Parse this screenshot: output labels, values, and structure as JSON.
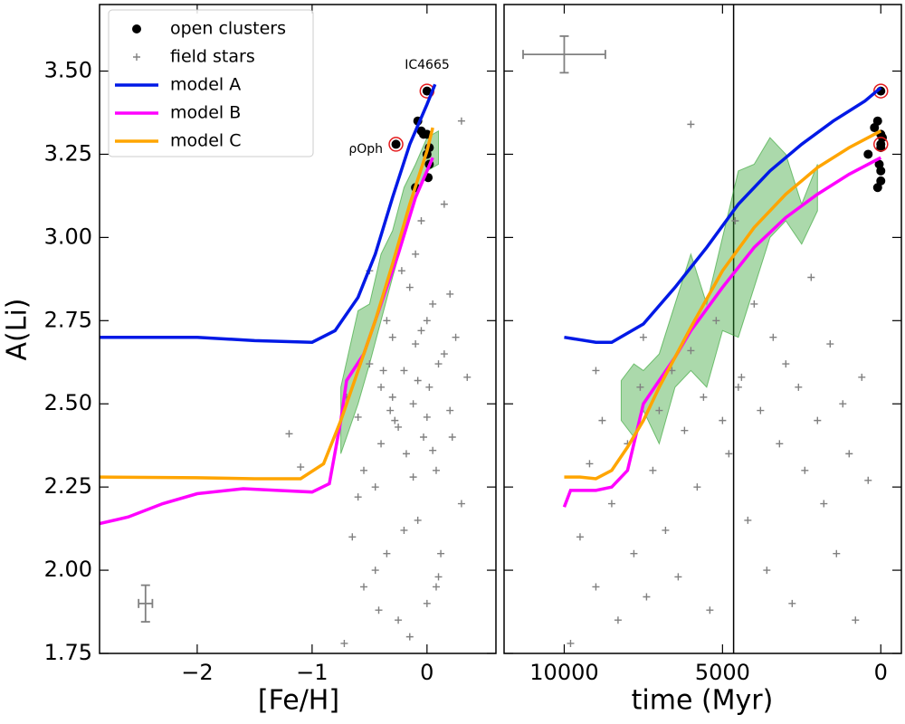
{
  "chart_data": [
    {
      "type": "scatter",
      "xlabel": "[Fe/H]",
      "ylabel": "A(Li)",
      "xlim": [
        -2.85,
        0.6
      ],
      "ylim": [
        1.75,
        3.7
      ],
      "xticks": [
        {
          "value": -2,
          "label": "−2"
        },
        {
          "value": -1,
          "label": "−1"
        },
        0
      ],
      "yticks": [
        1.75,
        {
          "value": 2,
          "label": "2.00"
        },
        2.25,
        {
          "value": 2.5,
          "label": "2.50"
        },
        2.75,
        {
          "value": 3,
          "label": "3.00"
        },
        3.25,
        {
          "value": 3.5,
          "label": "3.50"
        }
      ],
      "legend": "upper left",
      "annotations": [
        "IC4665",
        "ρOph"
      ],
      "series": [
        {
          "kind": "band",
          "color": "#2ca02c",
          "x": [
            -0.75,
            -0.6,
            -0.5,
            -0.4,
            -0.3,
            -0.2,
            -0.1,
            0,
            0.1
          ],
          "lower": [
            2.35,
            2.5,
            2.62,
            2.75,
            2.88,
            3.0,
            3.12,
            3.2,
            3.22
          ],
          "upper": [
            2.55,
            2.78,
            2.8,
            2.95,
            3.02,
            3.15,
            3.22,
            3.3,
            3.32
          ]
        },
        {
          "name": "field stars",
          "kind": "plus",
          "color": "#808080",
          "x": [
            -1.2,
            -1.1,
            -0.72,
            -0.65,
            -0.6,
            -0.55,
            -0.5,
            -0.45,
            -0.4,
            -0.35,
            -0.3,
            -0.28,
            -0.25,
            -0.2,
            -0.18,
            -0.15,
            -0.12,
            -0.1,
            -0.08,
            -0.05,
            -0.03,
            0,
            0.02,
            0.05,
            0.08,
            0.1,
            0.12,
            0.15,
            0.2,
            0.25,
            0.3,
            0.35,
            -0.5,
            -0.4,
            -0.3,
            -0.2,
            -0.1,
            0,
            0.1,
            0.2,
            -0.6,
            -0.45,
            -0.35,
            -0.25,
            -0.15,
            -0.05,
            0.05,
            0.15,
            -0.7,
            -0.55,
            -0.38,
            -0.22,
            -0.08,
            0.08,
            0.22,
            0.3,
            -0.42,
            -0.12,
            0,
            -0.32
          ],
          "values": [
            2.41,
            2.31,
            1.78,
            2.1,
            2.46,
            1.95,
            2.62,
            2.25,
            2.55,
            2.05,
            2.7,
            2.45,
            1.85,
            2.6,
            2.35,
            2.85,
            2.5,
            2.95,
            2.15,
            2.72,
            2.4,
            1.9,
            2.55,
            2.8,
            2.3,
            2.62,
            2.05,
            3.1,
            2.48,
            2.7,
            2.2,
            2.58,
            2.9,
            2.38,
            2.52,
            2.12,
            2.68,
            2.46,
            1.98,
            2.83,
            2.22,
            2.0,
            2.75,
            2.43,
            1.8,
            3.05,
            2.36,
            2.65,
            2.52,
            2.3,
            2.6,
            2.9,
            2.57,
            1.95,
            2.4,
            3.35,
            1.88,
            2.28,
            2.75,
            2.48
          ]
        },
        {
          "name": "open clusters",
          "kind": "dot",
          "color": "#000000",
          "x": [
            0,
            -0.08,
            -0.05,
            0,
            -0.03,
            0.02,
            0,
            0.02,
            0.01,
            -0.1,
            -0.27
          ],
          "values": [
            3.44,
            3.35,
            3.32,
            3.31,
            3.31,
            3.27,
            3.25,
            3.22,
            3.18,
            3.15,
            3.28
          ]
        },
        {
          "kind": "ring",
          "color": "#e41a1c",
          "x": [
            0,
            -0.27
          ],
          "values": [
            3.44,
            3.28
          ]
        },
        {
          "name": "model A",
          "kind": "line",
          "color": "#0019e6",
          "x": [
            -2.85,
            -2.0,
            -1.5,
            -1.0,
            -0.8,
            -0.6,
            -0.45,
            -0.3,
            -0.15,
            0,
            0.07
          ],
          "values": [
            2.7,
            2.7,
            2.69,
            2.685,
            2.72,
            2.82,
            2.95,
            3.12,
            3.28,
            3.4,
            3.46
          ]
        },
        {
          "name": "model B",
          "kind": "line",
          "color": "#ff00ff",
          "x": [
            -2.85,
            -2.6,
            -2.3,
            -2.0,
            -1.6,
            -1.3,
            -1.0,
            -0.85,
            -0.75,
            -0.7,
            -0.55,
            -0.4,
            -0.25,
            -0.1,
            0.05
          ],
          "values": [
            2.14,
            2.16,
            2.2,
            2.23,
            2.245,
            2.24,
            2.235,
            2.26,
            2.45,
            2.57,
            2.65,
            2.8,
            2.95,
            3.12,
            3.24
          ]
        },
        {
          "name": "model C",
          "kind": "line",
          "color": "#ffa500",
          "x": [
            -2.85,
            -2.0,
            -1.5,
            -1.1,
            -0.9,
            -0.75,
            -0.6,
            -0.45,
            -0.3,
            -0.15,
            0,
            0.05
          ],
          "values": [
            2.28,
            2.278,
            2.275,
            2.275,
            2.32,
            2.45,
            2.6,
            2.75,
            2.92,
            3.1,
            3.26,
            3.33
          ]
        },
        {
          "kind": "errorbar",
          "color": "#808080",
          "x": [
            -2.45
          ],
          "values": [
            1.9
          ],
          "xerr": [
            0.06
          ],
          "yerr": [
            0.055
          ]
        }
      ]
    },
    {
      "type": "scatter",
      "xlabel": "time (Myr)",
      "xlim": [
        11900,
        -650
      ],
      "ylim": [
        1.75,
        3.7
      ],
      "xticks": [
        {
          "value": 10000,
          "label": "10000"
        },
        5000,
        0
      ],
      "vline": 4650,
      "series": [
        {
          "kind": "band",
          "color": "#2ca02c",
          "x": [
            8200,
            7800,
            7500,
            7000,
            6500,
            6000,
            5500,
            5000,
            4500,
            4000,
            3500,
            3000,
            2500,
            2000
          ],
          "lower": [
            2.45,
            2.4,
            2.48,
            2.38,
            2.55,
            2.6,
            2.55,
            2.72,
            2.7,
            2.85,
            3.0,
            3.05,
            2.98,
            3.08
          ],
          "upper": [
            2.57,
            2.62,
            2.6,
            2.65,
            2.8,
            2.95,
            2.8,
            3.0,
            3.2,
            3.22,
            3.3,
            3.25,
            3.1,
            3.22
          ]
        },
        {
          "kind": "plus",
          "color": "#808080",
          "x": [
            9800,
            9500,
            9200,
            9000,
            8800,
            8500,
            8300,
            8000,
            7800,
            7600,
            7400,
            7200,
            7000,
            6800,
            6600,
            6400,
            6200,
            6000,
            5800,
            5600,
            5400,
            5200,
            5000,
            4800,
            4600,
            4400,
            4200,
            4000,
            3800,
            3600,
            3400,
            3200,
            3000,
            2800,
            2600,
            2400,
            2200,
            2000,
            1800,
            1600,
            1400,
            1200,
            1000,
            800,
            600,
            400,
            9000,
            7500,
            6000,
            4500
          ],
          "values": [
            1.78,
            2.1,
            2.32,
            1.95,
            2.45,
            2.2,
            1.85,
            2.38,
            2.05,
            2.55,
            1.92,
            2.3,
            2.48,
            2.12,
            2.6,
            1.98,
            2.42,
            2.66,
            2.25,
            2.52,
            1.88,
            2.75,
            2.45,
            2.35,
            3.05,
            2.58,
            2.15,
            2.8,
            2.48,
            2.0,
            2.7,
            2.38,
            2.62,
            1.9,
            2.55,
            2.3,
            2.88,
            2.45,
            2.2,
            2.68,
            2.05,
            2.5,
            2.35,
            1.85,
            2.58,
            2.27,
            2.6,
            2.7,
            3.34,
            2.55
          ]
        },
        {
          "kind": "dot",
          "color": "#000000",
          "x": [
            0,
            200,
            100,
            0,
            -50,
            0,
            50,
            0,
            0,
            100,
            400,
            0
          ],
          "values": [
            3.44,
            3.33,
            3.35,
            3.31,
            3.3,
            3.27,
            3.22,
            3.2,
            3.17,
            3.15,
            3.25,
            3.28
          ]
        },
        {
          "kind": "ring",
          "color": "#e41a1c",
          "x": [
            0,
            0
          ],
          "values": [
            3.44,
            3.28
          ]
        },
        {
          "kind": "line",
          "color": "#0019e6",
          "x": [
            10000,
            9000,
            8500,
            7500,
            6500,
            5500,
            4500,
            3500,
            2500,
            1500,
            500,
            0
          ],
          "values": [
            2.7,
            2.685,
            2.685,
            2.74,
            2.85,
            2.97,
            3.1,
            3.2,
            3.28,
            3.35,
            3.41,
            3.45
          ]
        },
        {
          "kind": "line",
          "color": "#ff00ff",
          "x": [
            10000,
            9800,
            9500,
            9000,
            8500,
            8000,
            7800,
            7500,
            7000,
            6500,
            6000,
            5000,
            4000,
            3000,
            2000,
            1000,
            0
          ],
          "values": [
            2.19,
            2.24,
            2.24,
            2.24,
            2.25,
            2.3,
            2.38,
            2.5,
            2.57,
            2.64,
            2.72,
            2.85,
            2.97,
            3.06,
            3.13,
            3.19,
            3.24
          ]
        },
        {
          "kind": "line",
          "color": "#ffa500",
          "x": [
            10000,
            9500,
            9000,
            8500,
            8000,
            7500,
            7000,
            6500,
            6000,
            5000,
            4000,
            3000,
            2000,
            1000,
            0
          ],
          "values": [
            2.28,
            2.28,
            2.275,
            2.3,
            2.37,
            2.45,
            2.55,
            2.64,
            2.73,
            2.9,
            3.03,
            3.13,
            3.21,
            3.27,
            3.32
          ]
        },
        {
          "kind": "errorbar",
          "color": "#808080",
          "x": [
            10000
          ],
          "values": [
            3.55
          ],
          "xerr": [
            1300
          ],
          "yerr": [
            0.055
          ]
        }
      ]
    }
  ]
}
